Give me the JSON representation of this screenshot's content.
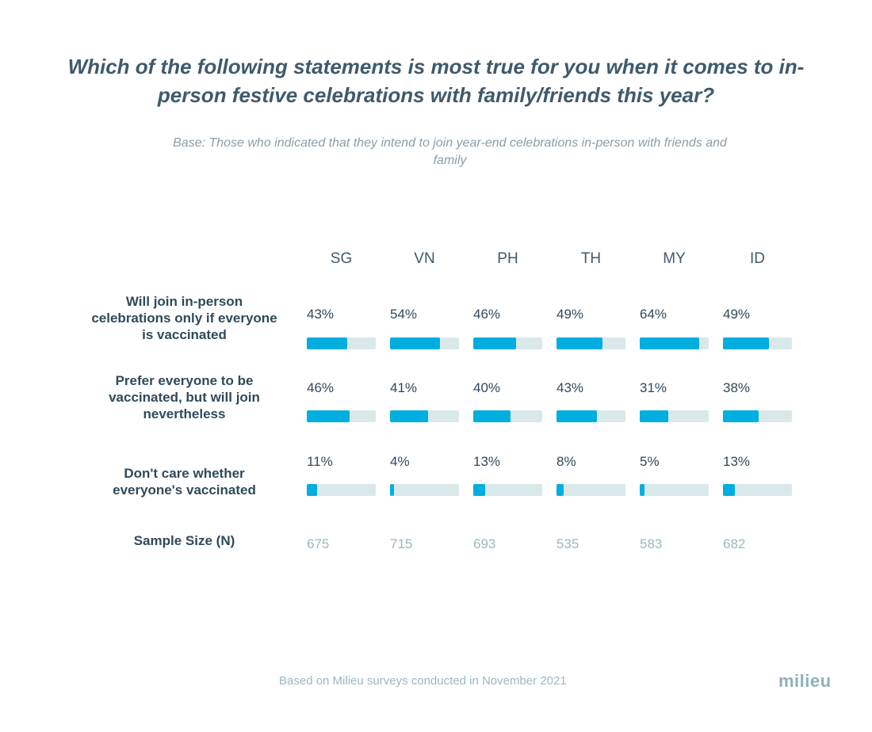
{
  "chart_data": {
    "type": "table",
    "title": "Which of the following statements is most true for you when it comes to in-person festive celebrations with family/friends this year?",
    "subtitle": "Base: Those who indicated that they intend to join year-end celebrations in-person with friends and family",
    "categories": [
      "SG",
      "VN",
      "PH",
      "TH",
      "MY",
      "ID"
    ],
    "series": [
      {
        "name": "Will join in-person celebrations only if everyone is vaccinated",
        "values": [
          43,
          54,
          46,
          49,
          64,
          49
        ]
      },
      {
        "name": "Prefer everyone to be vaccinated, but will join nevertheless",
        "values": [
          46,
          41,
          40,
          43,
          31,
          38
        ]
      },
      {
        "name": "Don't care whether everyone's vaccinated",
        "values": [
          11,
          4,
          13,
          8,
          5,
          13
        ]
      }
    ],
    "sample_label": "Sample Size (N)",
    "sample_sizes": [
      675,
      715,
      693,
      535,
      583,
      682
    ],
    "colors": {
      "fill": "#00aedf",
      "track": "#d9e8e8"
    }
  },
  "footer": "Based on Milieu surveys conducted in November 2021",
  "logo": "milieu"
}
